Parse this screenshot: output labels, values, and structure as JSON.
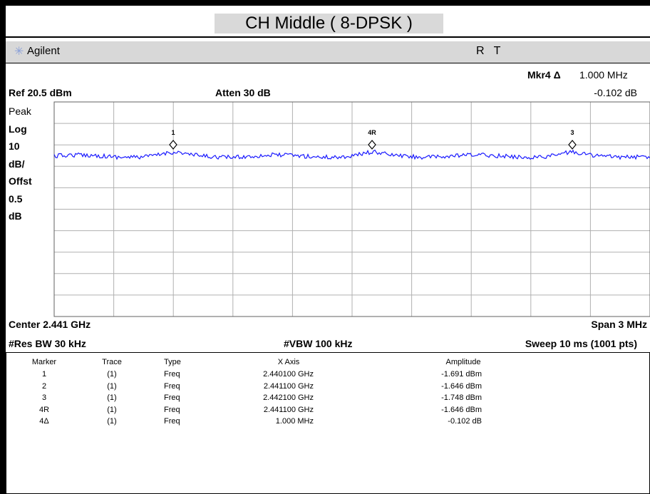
{
  "title": "CH Middle ( 8-DPSK )",
  "brand": "Agilent",
  "status": "R   T",
  "marker_readout": {
    "label": "Mkr4 Δ",
    "freq": "1.000 MHz",
    "amp": "-0.102 dB"
  },
  "ref": "Ref 20.5 dBm",
  "atten": "Atten 30 dB",
  "left_labels": [
    "Peak",
    "Log",
    "10",
    "dB/",
    "Offst",
    "0.5",
    "dB"
  ],
  "trace_markers": [
    "1",
    "4R",
    "3"
  ],
  "center": "Center 2.441 GHz",
  "span": "Span 3 MHz",
  "rbw": "#Res BW 30 kHz",
  "vbw": "#VBW 100 kHz",
  "sweep": "Sweep 10 ms (1001 pts)",
  "table": {
    "header": [
      "Marker",
      "Trace",
      "Type",
      "X Axis",
      "Amplitude"
    ],
    "rows": [
      [
        "1",
        "(1)",
        "Freq",
        "2.440100 GHz",
        "-1.691 dBm"
      ],
      [
        "2",
        "(1)",
        "Freq",
        "2.441100 GHz",
        "-1.646 dBm"
      ],
      [
        "3",
        "(1)",
        "Freq",
        "2.442100 GHz",
        "-1.748 dBm"
      ],
      [
        "4R",
        "(1)",
        "Freq",
        "2.441100 GHz",
        "-1.646 dBm"
      ],
      [
        "4Δ",
        "(1)",
        "Freq",
        "1.000 MHz",
        "-0.102 dB"
      ]
    ]
  }
}
